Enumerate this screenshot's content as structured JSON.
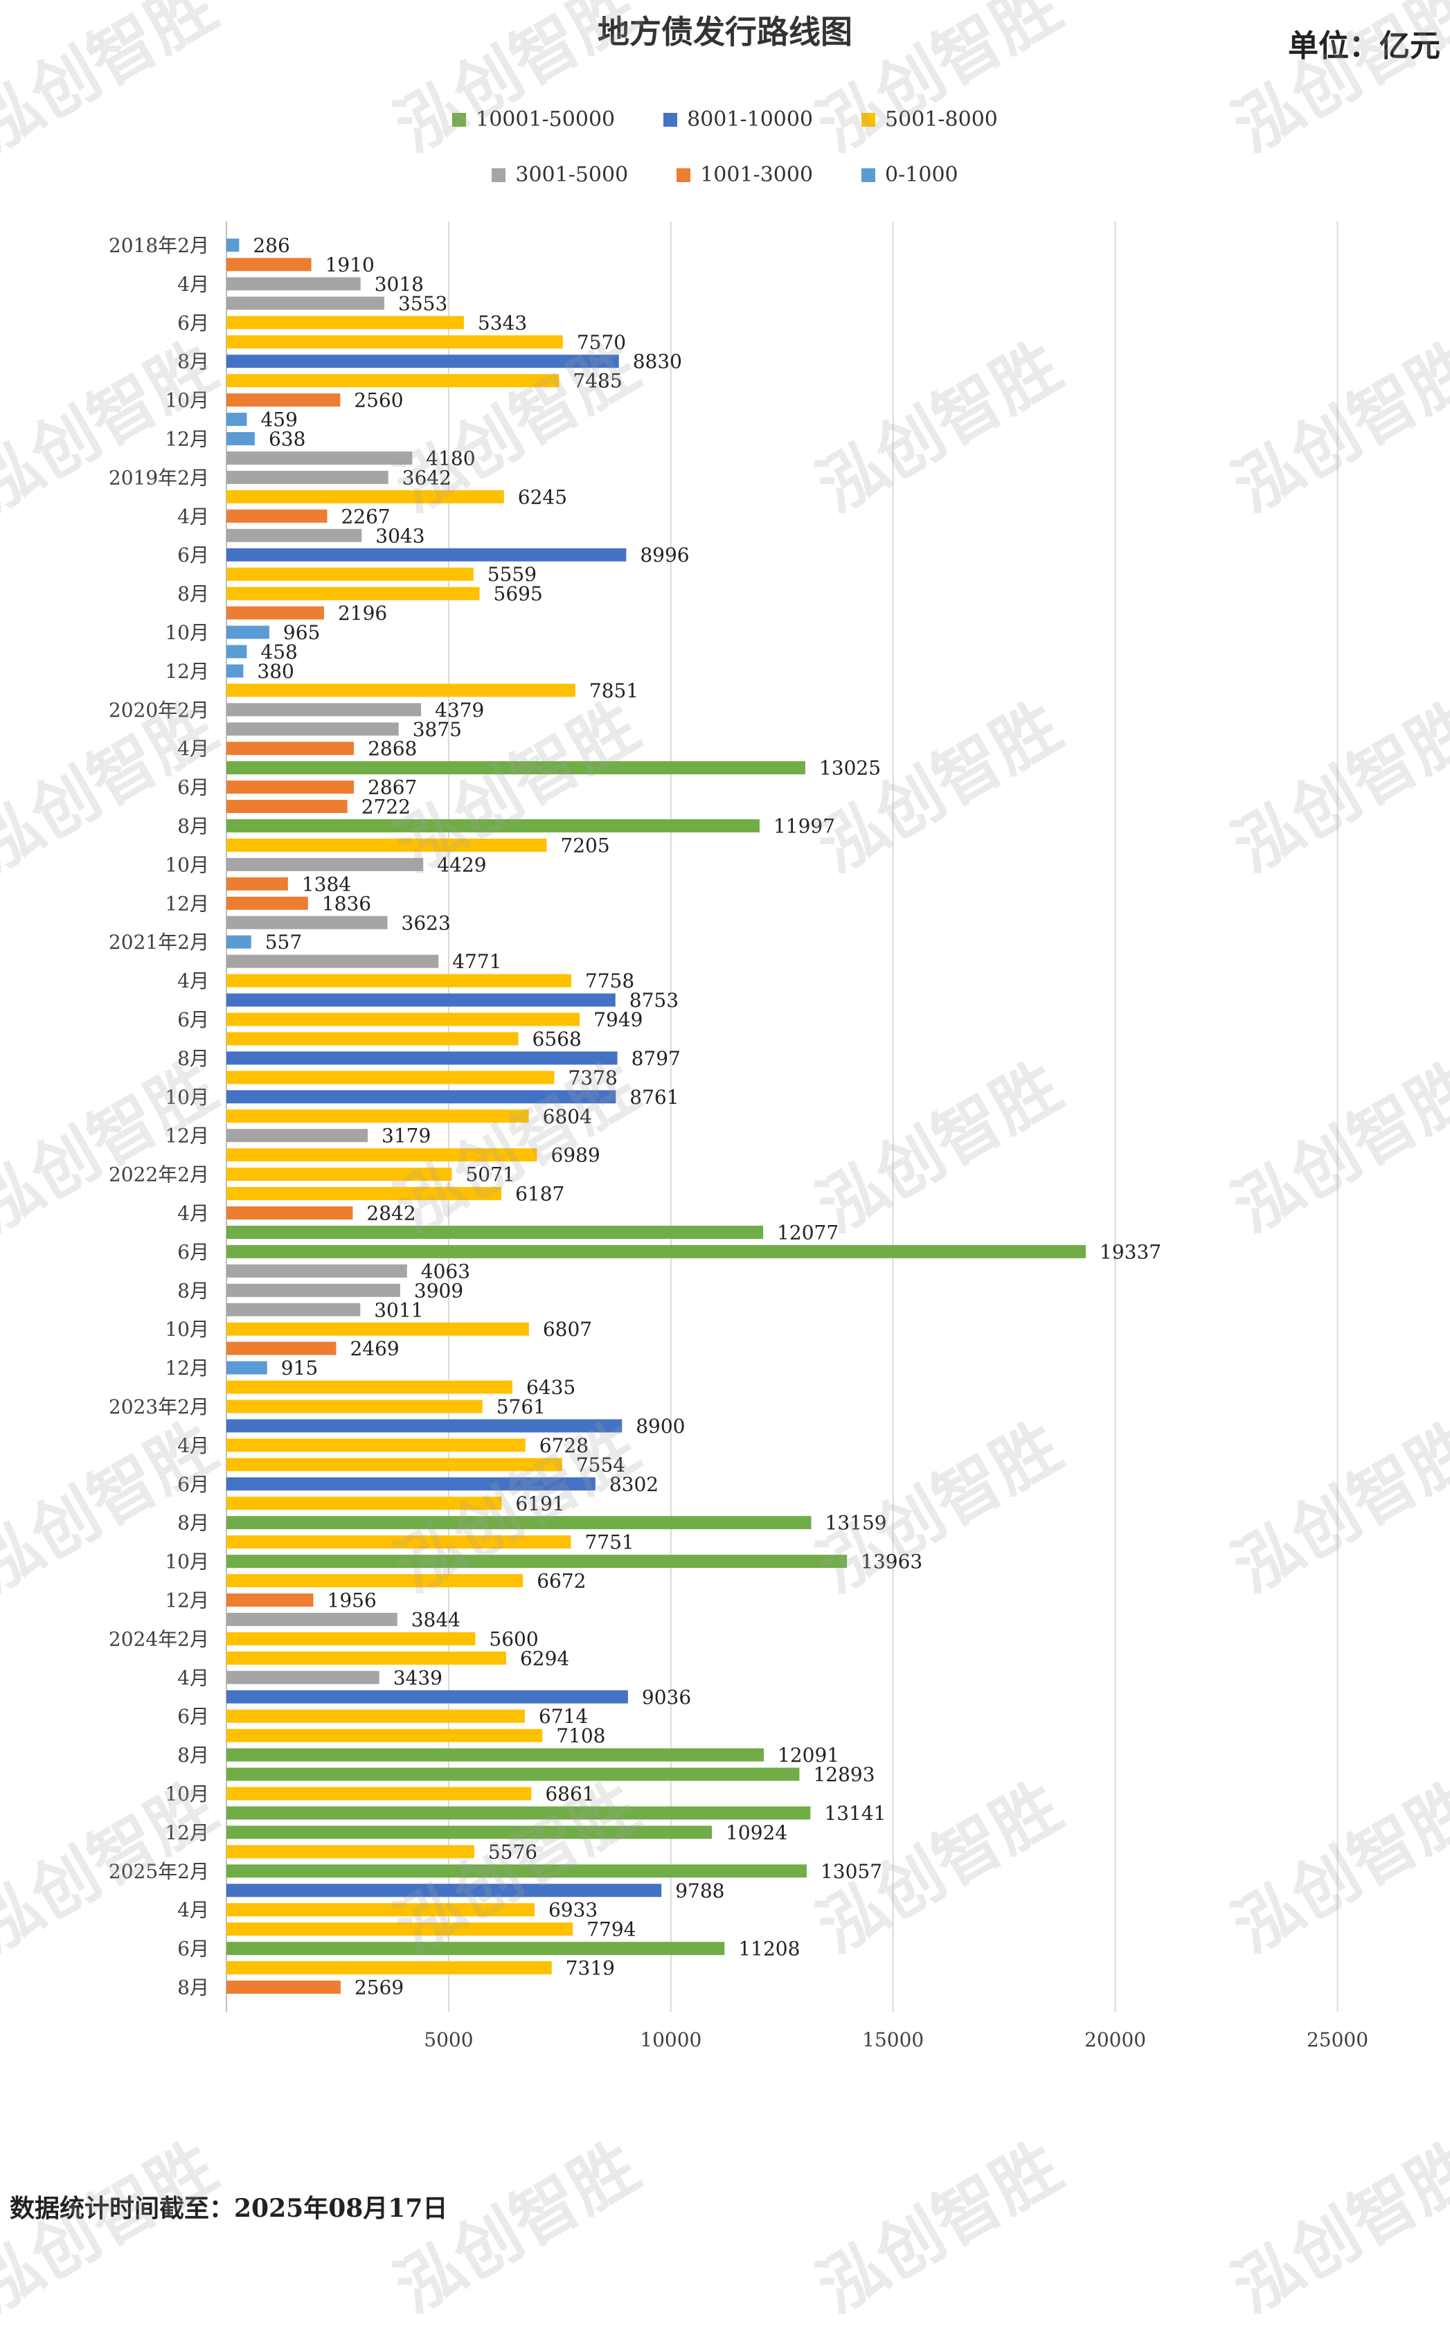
{
  "title": "地方债发行路线图",
  "unit_label": "单位：亿元",
  "footer": "数据统计时间截至：2025年08月17日",
  "watermark": "泓创智胜",
  "chart_data": {
    "type": "bar",
    "orientation": "horizontal",
    "title": "地方债发行路线图",
    "xlim": [
      0,
      27000
    ],
    "x_ticks": [
      "5000",
      "10000",
      "15000",
      "20000",
      "25000"
    ],
    "grid": true,
    "legend_position": "top",
    "legend": [
      {
        "name": "10001-50000",
        "color": "#70ad47"
      },
      {
        "name": "8001-10000",
        "color": "#4472c4"
      },
      {
        "name": "5001-8000",
        "color": "#ffc000"
      },
      {
        "name": "3001-5000",
        "color": "#a5a5a5"
      },
      {
        "name": "1001-3000",
        "color": "#ed7d31"
      },
      {
        "name": "0-1000",
        "color": "#5b9bd5"
      }
    ],
    "category_labels": [
      "2018年2月",
      "4月",
      "6月",
      "8月",
      "10月",
      "12月",
      "2019年2月",
      "4月",
      "6月",
      "8月",
      "10月",
      "12月",
      "2020年2月",
      "4月",
      "6月",
      "8月",
      "10月",
      "12月",
      "2021年2月",
      "4月",
      "6月",
      "8月",
      "10月",
      "12月",
      "2022年2月",
      "4月",
      "6月",
      "8月",
      "10月",
      "12月",
      "2023年2月",
      "4月",
      "6月",
      "8月",
      "10月",
      "12月",
      "2024年2月",
      "4月",
      "6月",
      "8月",
      "10月",
      "12月",
      "2025年2月",
      "4月",
      "6月",
      "8月"
    ],
    "values": [
      286,
      1910,
      3018,
      3553,
      5343,
      7570,
      8830,
      7485,
      2560,
      459,
      638,
      4180,
      3642,
      6245,
      2267,
      3043,
      8996,
      5559,
      5695,
      2196,
      965,
      458,
      380,
      7851,
      4379,
      3875,
      2868,
      13025,
      2867,
      2722,
      11997,
      7205,
      4429,
      1384,
      1836,
      3623,
      557,
      4771,
      7758,
      8753,
      7949,
      6568,
      8797,
      7378,
      8761,
      6804,
      3179,
      6989,
      5071,
      6187,
      2842,
      12077,
      19337,
      4063,
      3909,
      3011,
      6807,
      2469,
      915,
      6435,
      5761,
      8900,
      6728,
      7554,
      8302,
      6191,
      13159,
      7751,
      13963,
      6672,
      1956,
      3844,
      5600,
      6294,
      3439,
      9036,
      6714,
      7108,
      12091,
      12893,
      6861,
      13141,
      10924,
      5576,
      13057,
      9788,
      6933,
      7794,
      11208,
      7319,
      2569
    ],
    "value_labels": [
      "286",
      "1910",
      "3018",
      "3553",
      "5343",
      "7570",
      "8830",
      "7485",
      "2560",
      "459",
      "638",
      "4180",
      "3642",
      "6245",
      "2267",
      "3043",
      "8996",
      "5559",
      "5695",
      "2196",
      "965",
      "458",
      "380",
      "7851",
      "4379",
      "3875",
      "2868",
      "13025",
      "2867",
      "2722",
      "11997",
      "7205",
      "4429",
      "1384",
      "1836",
      "3623",
      "557",
      "4771",
      "7758",
      "8753",
      "7949",
      "6568",
      "8797",
      "7378",
      "8761",
      "6804",
      "3179",
      "6989",
      "5071",
      "6187",
      "2842",
      "12077",
      "19337",
      "4063",
      "3909",
      "3011",
      "6807",
      "2469",
      "915",
      "6435",
      "5761",
      "8900",
      "6728",
      "7554",
      "8302",
      "6191",
      "13159",
      "7751",
      "13963",
      "6672",
      "1956",
      "3844",
      "5600",
      "6294",
      "3439",
      "9036",
      "6714",
      "7108",
      "12091",
      "12893",
      "6861",
      "13141",
      "10924",
      "5576",
      "13057",
      "9788",
      "6933",
      "7794",
      "11208",
      "7319",
      "2569"
    ]
  }
}
